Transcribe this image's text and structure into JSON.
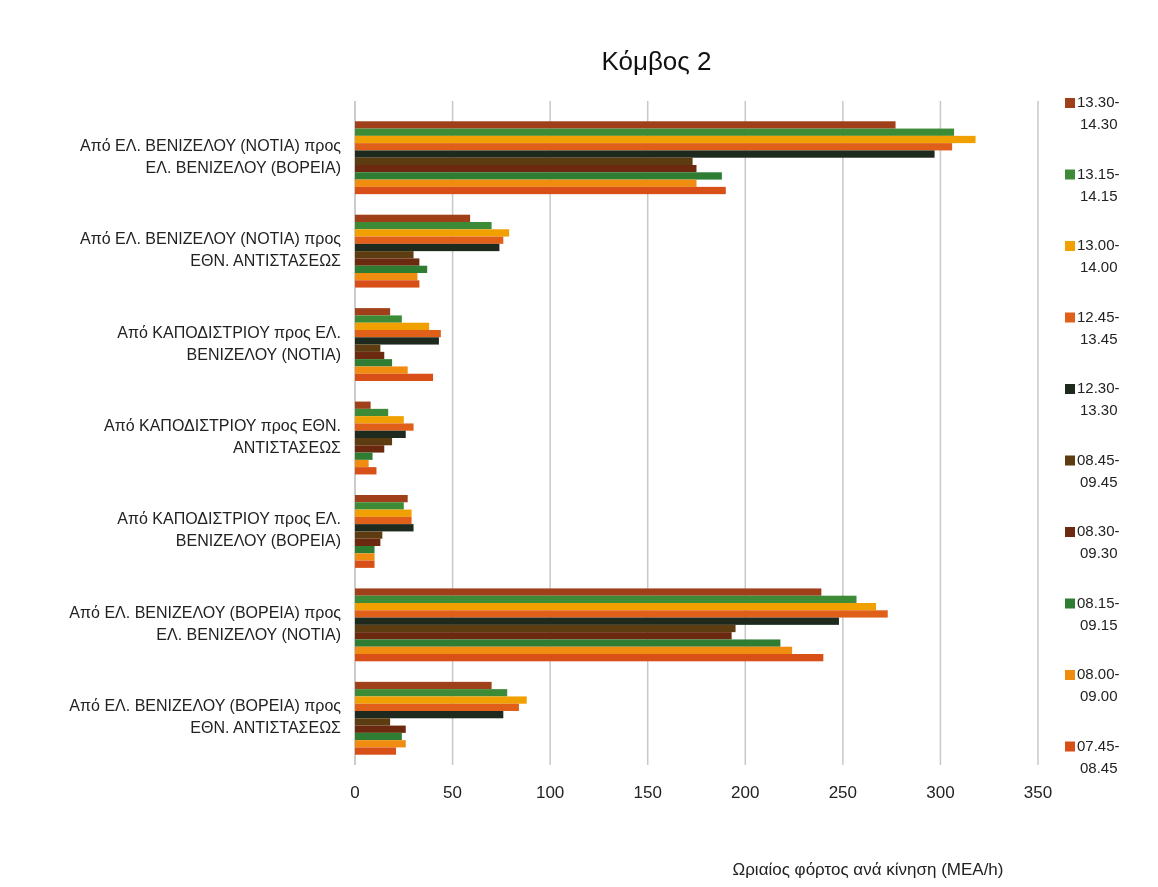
{
  "chart_data": {
    "type": "bar",
    "orientation": "horizontal",
    "title": "Κόμβος 2",
    "xlabel": "Ωριαίος φόρτος ανά κίνηση (ΜΕΑ/h)",
    "categories": [
      "Από ΕΛ. ΒΕΝΙΖΕΛΟΥ (ΝΟΤΙΑ) προς ΕΛ. ΒΕΝΙΖΕΛΟΥ (ΒΟΡΕΙΑ)",
      "Από ΕΛ. ΒΕΝΙΖΕΛΟΥ (ΝΟΤΙΑ) προς ΕΘΝ. ΑΝΤΙΣΤΑΣΕΩΣ",
      "Από ΚΑΠΟΔΙΣΤΡΙΟΥ προς ΕΛ. ΒΕΝΙΖΕΛΟΥ (ΝΟΤΙΑ)",
      "Από ΚΑΠΟΔΙΣΤΡΙΟΥ προς ΕΘΝ. ΑΝΤΙΣΤΑΣΕΩΣ",
      "Από ΚΑΠΟΔΙΣΤΡΙΟΥ προς ΕΛ. ΒΕΝΙΖΕΛΟΥ (ΒΟΡΕΙΑ)",
      "Από ΕΛ. ΒΕΝΙΖΕΛΟΥ (ΒΟΡΕΙΑ) προς ΕΛ. ΒΕΝΙΖΕΛΟΥ (ΝΟΤΙΑ)",
      "Από ΕΛ. ΒΕΝΙΖΕΛΟΥ (ΒΟΡΕΙΑ) προς ΕΘΝ. ΑΝΤΙΣΤΑΣΕΩΣ"
    ],
    "series": [
      {
        "name": "13.30-14.30",
        "color": "#a0401a",
        "values": [
          277,
          59,
          18,
          8,
          27,
          239,
          70
        ]
      },
      {
        "name": "13.15-14.15",
        "color": "#3d8b37",
        "values": [
          307,
          70,
          24,
          17,
          25,
          257,
          78
        ]
      },
      {
        "name": "13.00-14.00",
        "color": "#f0a000",
        "values": [
          318,
          79,
          38,
          25,
          29,
          267,
          88
        ]
      },
      {
        "name": "12.45-13.45",
        "color": "#e0601a",
        "values": [
          306,
          76,
          44,
          30,
          29,
          273,
          84
        ]
      },
      {
        "name": "12.30-13.30",
        "color": "#1e2a1e",
        "values": [
          297,
          74,
          43,
          26,
          30,
          248,
          76
        ]
      },
      {
        "name": "08.45-09.45",
        "color": "#5c3c10",
        "values": [
          173,
          30,
          13,
          19,
          14,
          195,
          18
        ]
      },
      {
        "name": "08.30-09.30",
        "color": "#6b2a10",
        "values": [
          175,
          33,
          15,
          15,
          13,
          193,
          26
        ]
      },
      {
        "name": "08.15-09.15",
        "color": "#2e7d32",
        "values": [
          188,
          37,
          19,
          9,
          10,
          218,
          24
        ]
      },
      {
        "name": "08.00-09.00",
        "color": "#f08c10",
        "values": [
          175,
          32,
          27,
          7,
          10,
          224,
          26
        ]
      },
      {
        "name": "07.45-08.45",
        "color": "#d85018",
        "values": [
          190,
          33,
          40,
          11,
          10,
          240,
          21
        ]
      }
    ],
    "xlim": [
      0,
      350
    ],
    "xticks": [
      0,
      50,
      100,
      150,
      200,
      250,
      300,
      350
    ],
    "grid": "x",
    "legend": "right"
  }
}
